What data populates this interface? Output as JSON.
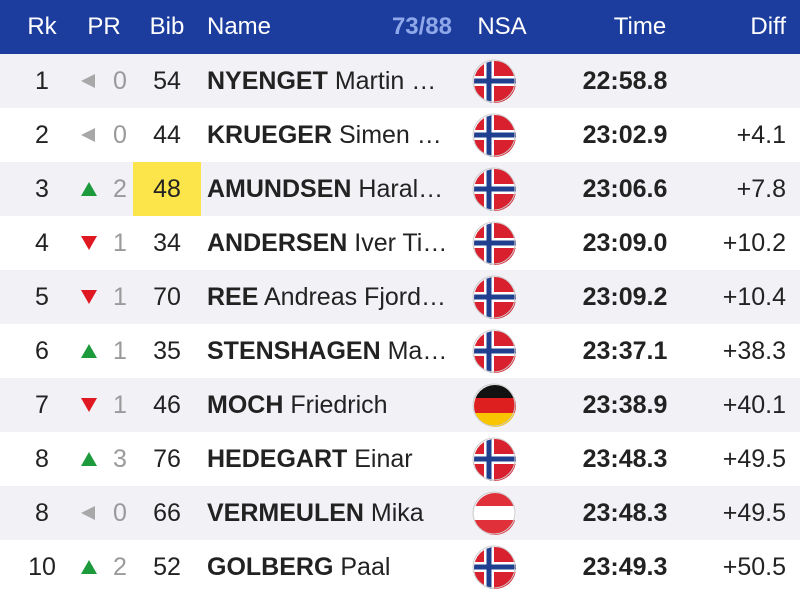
{
  "header": {
    "rk": "Rk",
    "pr": "PR",
    "bib": "Bib",
    "name": "Name",
    "count": "73/88",
    "nsa": "NSA",
    "time": "Time",
    "diff": "Diff"
  },
  "table": {
    "rows": [
      {
        "rk": "1",
        "trend": "same",
        "pr": "0",
        "bib": "54",
        "surname": "NYENGET",
        "given": "Martin …",
        "flag": "nor",
        "time": "22:58.8"
      },
      {
        "rk": "2",
        "trend": "same",
        "pr": "0",
        "bib": "44",
        "surname": "KRUEGER",
        "given": "Simen …",
        "flag": "nor",
        "time": "23:02.9",
        "diff": "+4.1"
      },
      {
        "rk": "3",
        "trend": "up",
        "pr": "2",
        "bib": "48",
        "highlight": true,
        "surname": "AMUNDSEN",
        "given": "Haral…",
        "flag": "nor",
        "time": "23:06.6",
        "diff": "+7.8"
      },
      {
        "rk": "4",
        "trend": "down",
        "pr": "1",
        "bib": "34",
        "surname": "ANDERSEN",
        "given": "Iver Ti…",
        "flag": "nor",
        "time": "23:09.0",
        "diff": "+10.2"
      },
      {
        "rk": "5",
        "trend": "down",
        "pr": "1",
        "bib": "70",
        "surname": "REE",
        "given": "Andreas Fjord…",
        "flag": "nor",
        "time": "23:09.2",
        "diff": "+10.4"
      },
      {
        "rk": "6",
        "trend": "up",
        "pr": "1",
        "bib": "35",
        "surname": "STENSHAGEN",
        "given": "Ma…",
        "flag": "nor",
        "time": "23:37.1",
        "diff": "+38.3"
      },
      {
        "rk": "7",
        "trend": "down",
        "pr": "1",
        "bib": "46",
        "surname": "MOCH",
        "given": "Friedrich",
        "flag": "ger",
        "time": "23:38.9",
        "diff": "+40.1"
      },
      {
        "rk": "8",
        "trend": "up",
        "pr": "3",
        "bib": "76",
        "surname": "HEDEGART",
        "given": "Einar",
        "flag": "nor",
        "time": "23:48.3",
        "diff": "+49.5"
      },
      {
        "rk": "8",
        "trend": "same",
        "pr": "0",
        "bib": "66",
        "surname": "VERMEULEN",
        "given": "Mika",
        "flag": "aut",
        "time": "23:48.3",
        "diff": "+49.5"
      },
      {
        "rk": "10",
        "trend": "up",
        "pr": "2",
        "bib": "52",
        "surname": "GOLBERG",
        "given": "Paal",
        "flag": "nor",
        "time": "23:49.3",
        "diff": "+50.5"
      }
    ]
  }
}
